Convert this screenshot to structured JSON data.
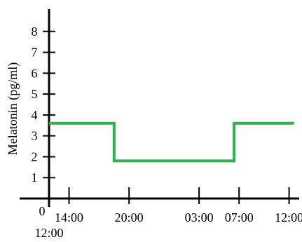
{
  "chart_data": {
    "type": "line",
    "step": true,
    "title": "",
    "ylabel": "Melatonin (pg/ml)",
    "xlabel": "",
    "y_ticks": [
      1,
      2,
      3,
      4,
      5,
      6,
      7,
      8
    ],
    "y_origin_label": "0",
    "x_ticks": [
      {
        "label": "14:00",
        "hour": 14
      },
      {
        "label": "20:00",
        "hour": 20
      },
      {
        "label": "03:00",
        "hour": 27
      },
      {
        "label": "07:00",
        "hour": 31
      },
      {
        "label": "12:00",
        "hour": 36
      }
    ],
    "x_origin_label": "12:00",
    "x_start_hour": 12,
    "ylim": [
      0,
      8.9
    ],
    "xlim_hours": [
      12,
      36.8
    ],
    "grid": false,
    "color": "#2db34a",
    "series": [
      {
        "points": [
          {
            "time": "12:00",
            "hour": 12,
            "value": 3.6
          },
          {
            "time": "18:30",
            "hour": 18.5,
            "value": 3.6
          },
          {
            "time": "18:30",
            "hour": 18.5,
            "value": 1.8
          },
          {
            "time": "06:30",
            "hour": 30.5,
            "value": 1.8
          },
          {
            "time": "06:30",
            "hour": 30.5,
            "value": 3.6
          },
          {
            "time": "12:30",
            "hour": 36.5,
            "value": 3.6
          }
        ]
      }
    ]
  }
}
